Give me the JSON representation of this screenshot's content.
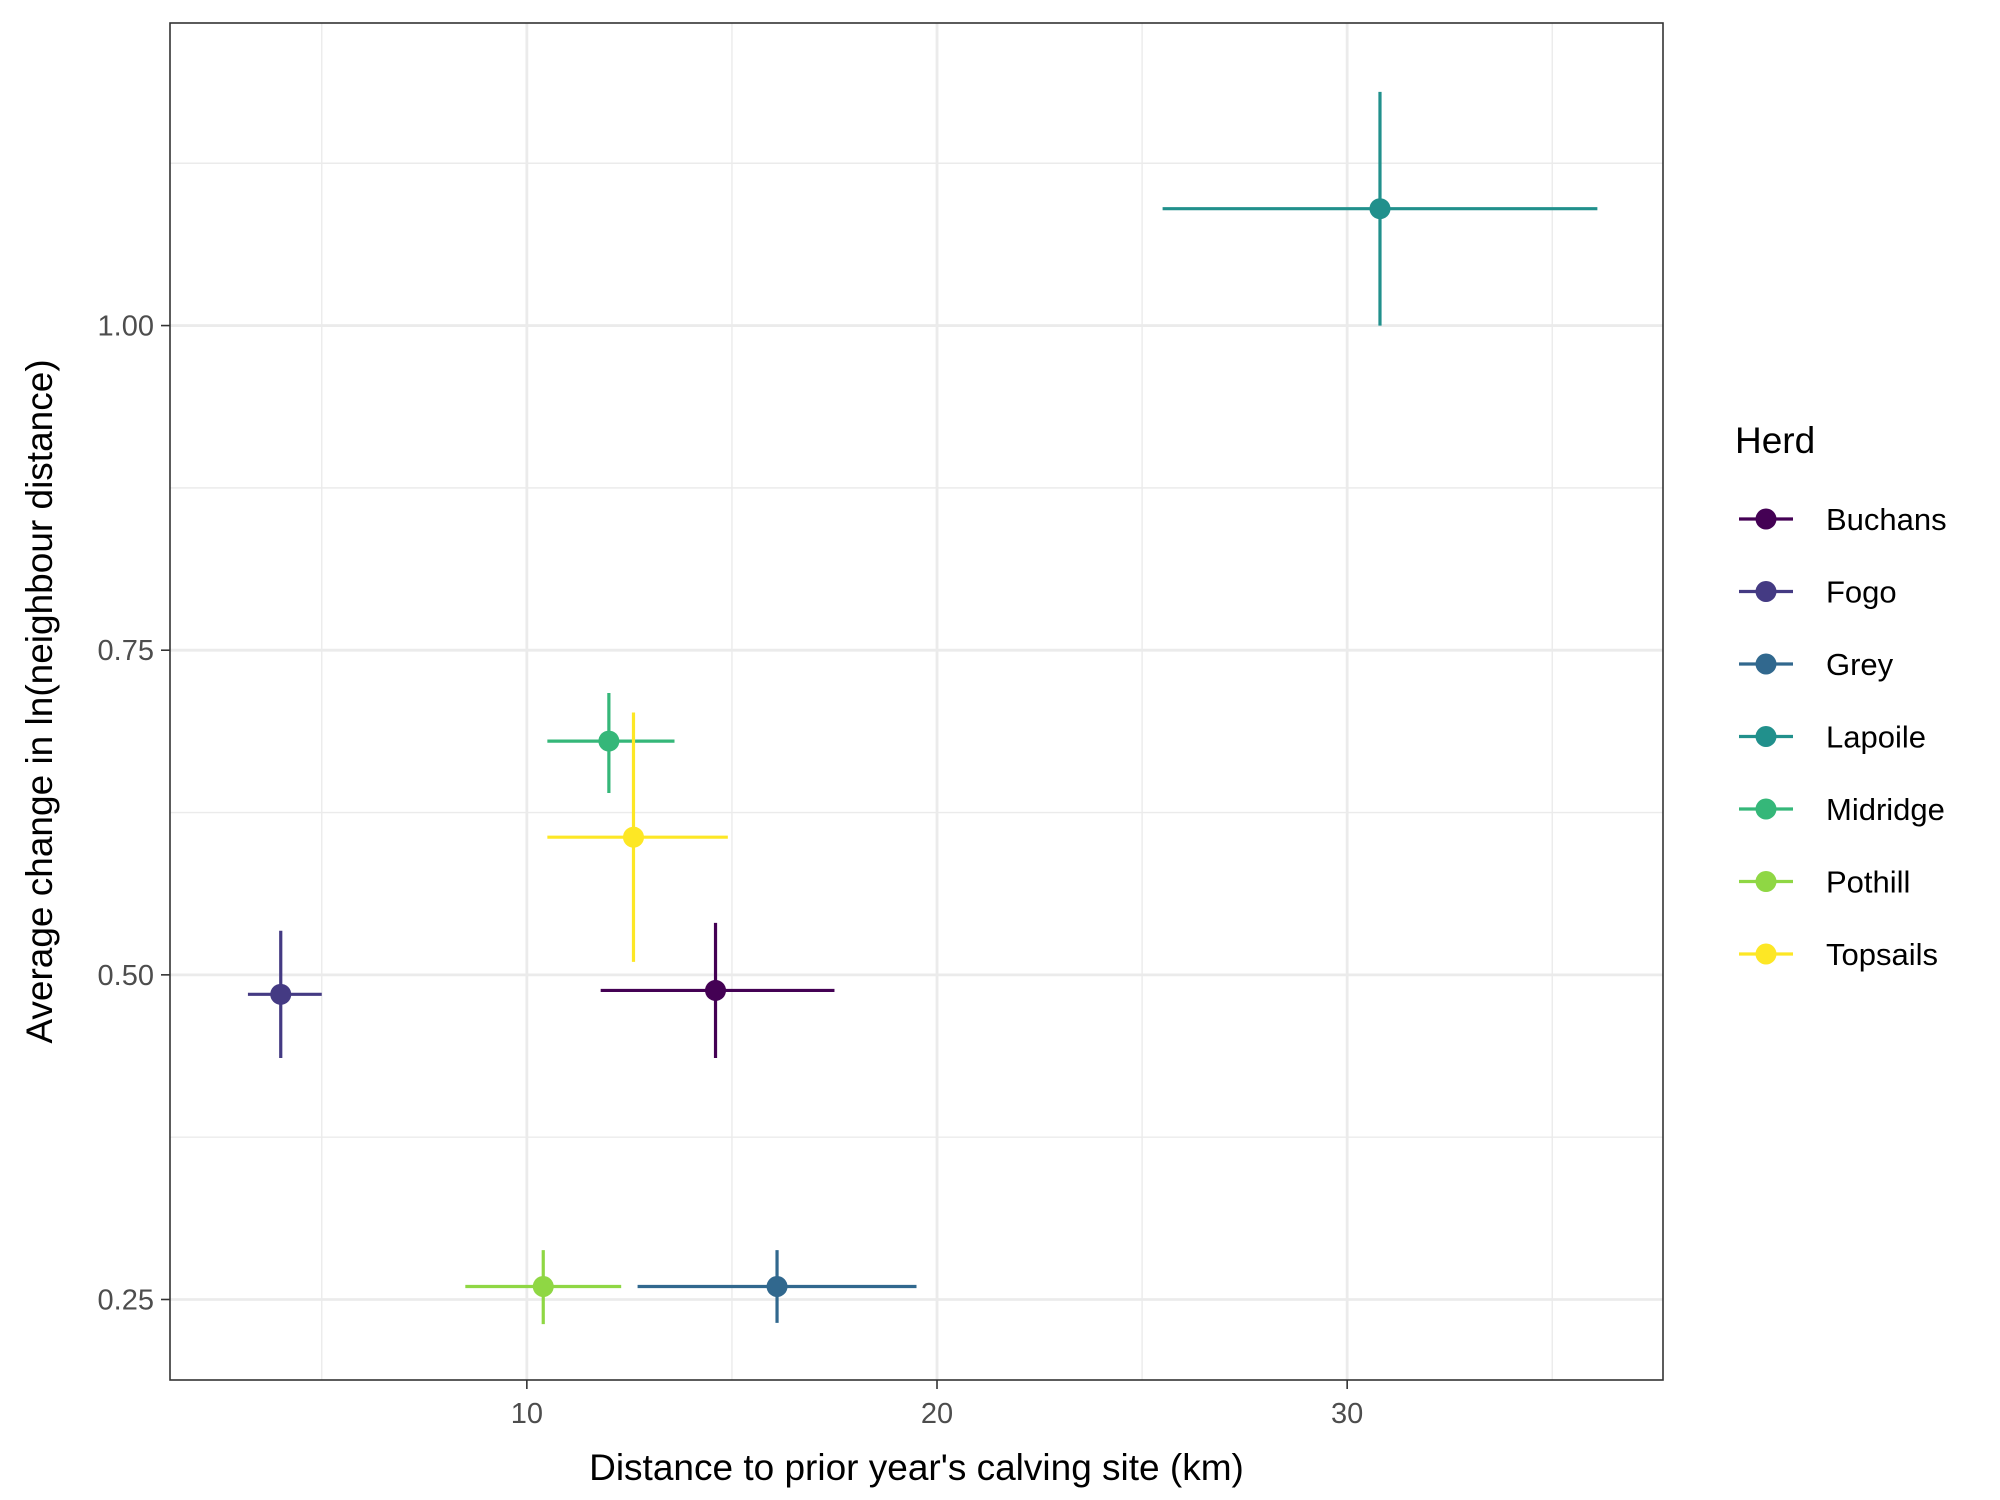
{
  "chart_data": {
    "type": "scatter",
    "xlabel": "Distance to prior year's calving site (km)",
    "ylabel": "Average change in ln(neighbour distance)",
    "xlim": [
      1.3,
      37.7
    ],
    "ylim": [
      0.188,
      1.233
    ],
    "x_ticks": [
      10,
      20,
      30
    ],
    "x_tick_labels": [
      "10",
      "20",
      "30"
    ],
    "x_minor_ticks": [
      5,
      15,
      25,
      35
    ],
    "y_ticks": [
      0.25,
      0.5,
      0.75,
      1.0
    ],
    "y_tick_labels": [
      "0.25",
      "0.50",
      "0.75",
      "1.00"
    ],
    "y_minor_ticks": [
      0.375,
      0.625,
      0.875,
      1.125
    ],
    "grid": true,
    "legend": {
      "title": "Herd",
      "position": "right"
    },
    "series": [
      {
        "name": "Buchans",
        "color": "#440154",
        "x": 14.6,
        "y": 0.488,
        "xmin": 11.8,
        "xmax": 17.5,
        "ymin": 0.436,
        "ymax": 0.54
      },
      {
        "name": "Fogo",
        "color": "#443A83",
        "x": 4.0,
        "y": 0.485,
        "xmin": 3.2,
        "xmax": 5.0,
        "ymin": 0.436,
        "ymax": 0.534
      },
      {
        "name": "Grey",
        "color": "#31688E",
        "x": 16.1,
        "y": 0.26,
        "xmin": 12.7,
        "xmax": 19.5,
        "ymin": 0.232,
        "ymax": 0.288
      },
      {
        "name": "Lapoile",
        "color": "#21908C",
        "x": 30.8,
        "y": 1.09,
        "xmin": 25.5,
        "xmax": 36.1,
        "ymin": 1.0,
        "ymax": 1.18
      },
      {
        "name": "Midridge",
        "color": "#35B779",
        "x": 12.0,
        "y": 0.68,
        "xmin": 10.5,
        "xmax": 13.6,
        "ymin": 0.64,
        "ymax": 0.717
      },
      {
        "name": "Pothill",
        "color": "#8FD744",
        "x": 10.4,
        "y": 0.26,
        "xmin": 8.5,
        "xmax": 12.3,
        "ymin": 0.231,
        "ymax": 0.288
      },
      {
        "name": "Topsails",
        "color": "#FDE725",
        "x": 12.6,
        "y": 0.606,
        "xmin": 10.5,
        "xmax": 14.9,
        "ymin": 0.51,
        "ymax": 0.702
      }
    ]
  }
}
